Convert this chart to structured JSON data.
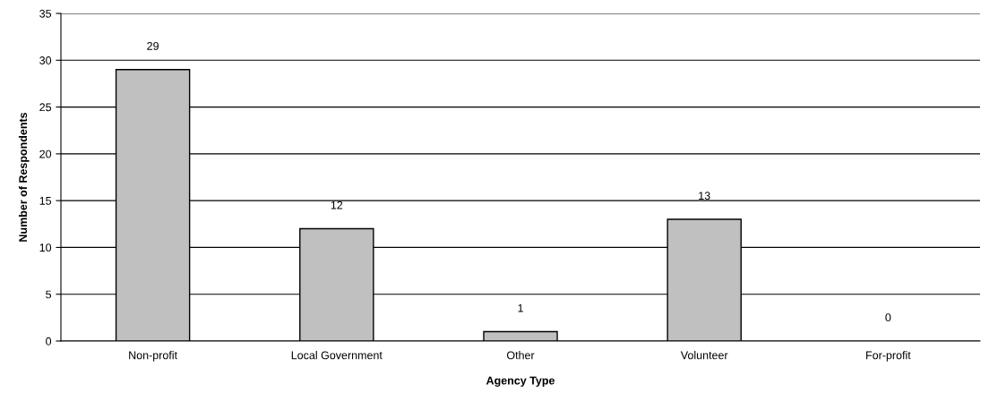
{
  "chart_data": {
    "type": "bar",
    "xlabel": "Agency Type",
    "ylabel": "Number of Respondents",
    "categories": [
      "Non-profit",
      "Local Government",
      "Other",
      "Volunteer",
      "For-profit"
    ],
    "values": [
      29,
      12,
      1,
      13,
      0
    ],
    "color": "#c0c0c0",
    "ylim": [
      0,
      35
    ],
    "yticks": [
      0,
      5,
      10,
      15,
      20,
      25,
      30,
      35
    ],
    "grid": "y",
    "data_labels": true,
    "legend": false
  }
}
